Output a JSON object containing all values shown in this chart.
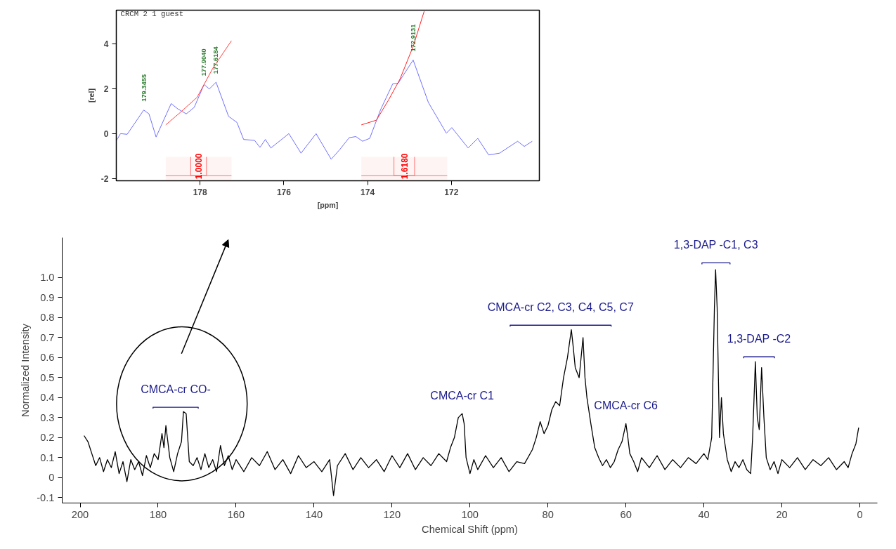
{
  "chart_data": [
    {
      "type": "line",
      "ylabel": "[rel]",
      "xlabel": "[ppm]",
      "xlim": [
        180.0,
        169.9
      ],
      "ylim": [
        -2.1,
        5.5
      ],
      "xticks": [
        178,
        176,
        174,
        172
      ],
      "yticks": [
        -2,
        0,
        2,
        4
      ],
      "grid": false,
      "annotations": [
        "CRCM  2  1  guest",
        {
          "text": "179.3455",
          "x": 179.3455,
          "y": 1.05
        },
        {
          "text": "177.9040",
          "x": 177.904,
          "y": 2.19
        },
        {
          "text": "177.6184",
          "x": 177.6184,
          "y": 2.29
        },
        {
          "text": "172.9131",
          "x": 172.9131,
          "y": 3.28
        }
      ],
      "bands": [
        {
          "axis": "x",
          "from": 178.82,
          "to": 177.25,
          "label": "1.0000",
          "color": "#ff7070"
        },
        {
          "axis": "x",
          "from": 174.15,
          "to": 172.1,
          "label": "1.6180",
          "color": "#ff7070"
        }
      ],
      "series": [
        {
          "color": "#6f6fff",
          "x": [
            180.0,
            179.9,
            179.74,
            179.3455,
            179.22,
            179.05,
            178.69,
            178.53,
            178.33,
            178.14,
            177.904,
            177.78,
            177.6184,
            177.32,
            177.12,
            176.96,
            176.7,
            176.57,
            176.44,
            176.31,
            175.88,
            175.59,
            175.23,
            174.87,
            174.67,
            174.44,
            174.28,
            174.12,
            173.95,
            173.69,
            173.4,
            173.27,
            172.9131,
            172.55,
            172.12,
            171.99,
            171.6,
            171.37,
            171.11,
            170.85,
            170.42,
            170.26,
            170.07
          ],
          "values": [
            -0.32,
            0.0,
            -0.03,
            1.05,
            0.88,
            -0.15,
            1.34,
            1.1,
            0.88,
            1.17,
            2.19,
            1.99,
            2.29,
            0.77,
            0.5,
            -0.26,
            -0.3,
            -0.61,
            -0.26,
            -0.64,
            0.0,
            -0.87,
            0.0,
            -1.14,
            -0.72,
            -0.18,
            -0.13,
            -0.34,
            -0.21,
            1.07,
            2.22,
            2.25,
            3.28,
            1.39,
            0.02,
            0.27,
            -0.64,
            -0.21,
            -0.95,
            -0.87,
            -0.34,
            -0.57,
            -0.34
          ]
        },
        {
          "color": "#ff4040",
          "x": [
            178.82,
            178.5,
            178.07,
            177.7,
            177.25
          ],
          "values": [
            0.39,
            0.9,
            1.62,
            2.9,
            4.14
          ]
        },
        {
          "color": "#ff2020",
          "x": [
            174.15,
            173.79,
            173.5,
            173.23,
            172.91,
            172.65
          ],
          "values": [
            0.39,
            0.6,
            1.5,
            2.42,
            3.9,
            5.45
          ]
        }
      ]
    },
    {
      "type": "line",
      "xlabel": "Chemical Shift (ppm)",
      "ylabel": "Normalized Intensity",
      "xlim": [
        204.6,
        -4.5
      ],
      "ylim": [
        -0.127,
        1.2
      ],
      "xticks": [
        200,
        180,
        160,
        140,
        120,
        100,
        80,
        60,
        40,
        20,
        0
      ],
      "yticks": [
        -0.1,
        0,
        0.1,
        0.2,
        0.3,
        0.4,
        0.5,
        0.6,
        0.7,
        0.8,
        0.9,
        {
          "value": 1.0,
          "label": "1.0"
        }
      ],
      "grid": false,
      "annotations": [
        {
          "text": "CMCA-cr CO-",
          "x": 175.5,
          "y": 0.352
        },
        {
          "text": "CMCA-cr C1",
          "x": 102,
          "y": 0.32
        },
        {
          "text": "CMCA-cr C2, C3, C4, C5, C7",
          "x": 76.75,
          "y": 0.762
        },
        {
          "text": "CMCA-cr C6",
          "x": 60,
          "y": 0.27
        },
        {
          "text": "1,3-DAP -C1, C3",
          "x": 36.9,
          "y": 1.074
        },
        {
          "text": "1,3-DAP -C2",
          "x": 25.85,
          "y": 0.604
        }
      ],
      "series": [
        {
          "color": "#000000",
          "x": [
            199,
            198,
            197,
            196,
            195,
            194,
            193,
            192,
            191,
            190,
            189,
            188,
            187,
            186,
            185,
            184,
            183,
            182,
            181,
            180,
            179,
            178.5,
            178,
            177,
            176,
            175,
            174,
            173.5,
            172.8,
            172,
            171,
            170,
            169,
            168,
            167,
            166,
            165,
            164,
            163,
            162,
            161,
            160,
            158,
            156,
            154,
            152,
            150,
            148,
            146,
            144,
            142,
            140,
            138,
            136,
            135,
            134,
            132,
            130,
            128,
            126,
            124,
            122,
            120,
            118,
            116,
            114,
            112,
            110,
            108,
            106,
            105,
            104,
            103,
            102,
            101.5,
            101,
            100,
            99,
            98,
            96,
            94,
            92,
            90,
            88,
            86,
            84,
            83,
            82,
            81,
            80,
            79,
            78,
            77,
            76,
            75,
            74,
            73.5,
            73,
            72,
            71,
            70.5,
            70,
            69,
            68,
            67,
            66,
            65,
            64,
            63,
            62,
            61,
            60,
            59.5,
            59,
            58,
            57,
            56,
            54,
            52,
            50,
            48,
            46,
            44,
            42,
            40,
            39,
            38,
            37.3,
            37,
            36.6,
            36,
            35.5,
            35,
            34,
            33,
            32,
            31,
            30,
            29,
            28,
            27.5,
            26.8,
            26.3,
            25.8,
            25.2,
            24.6,
            24,
            23,
            22,
            21,
            20,
            18,
            16,
            14,
            12,
            10,
            8,
            6,
            4,
            3,
            2,
            1,
            0.3
          ],
          "values": [
            0.21,
            0.18,
            0.12,
            0.06,
            0.1,
            0.03,
            0.09,
            0.05,
            0.13,
            0.02,
            0.08,
            -0.02,
            0.09,
            0.04,
            0.08,
            0.01,
            0.11,
            0.05,
            0.12,
            0.09,
            0.22,
            0.15,
            0.26,
            0.1,
            0.03,
            0.12,
            0.18,
            0.33,
            0.32,
            0.08,
            0.06,
            0.1,
            0.04,
            0.12,
            0.05,
            0.09,
            0.03,
            0.16,
            0.06,
            0.11,
            0.04,
            0.09,
            0.03,
            0.1,
            0.06,
            0.13,
            0.04,
            0.09,
            0.02,
            0.11,
            0.05,
            0.08,
            0.03,
            0.09,
            -0.09,
            0.06,
            0.12,
            0.04,
            0.1,
            0.05,
            0.09,
            0.03,
            0.11,
            0.05,
            0.12,
            0.04,
            0.1,
            0.06,
            0.12,
            0.08,
            0.15,
            0.2,
            0.3,
            0.32,
            0.27,
            0.1,
            0.02,
            0.09,
            0.04,
            0.11,
            0.05,
            0.1,
            0.03,
            0.08,
            0.07,
            0.14,
            0.2,
            0.28,
            0.22,
            0.26,
            0.34,
            0.38,
            0.36,
            0.5,
            0.6,
            0.74,
            0.65,
            0.55,
            0.5,
            0.7,
            0.5,
            0.4,
            0.27,
            0.15,
            0.1,
            0.06,
            0.09,
            0.05,
            0.08,
            0.14,
            0.18,
            0.27,
            0.2,
            0.12,
            0.08,
            0.03,
            0.1,
            0.05,
            0.11,
            0.04,
            0.09,
            0.05,
            0.1,
            0.07,
            0.12,
            0.09,
            0.2,
            0.85,
            1.04,
            0.85,
            0.2,
            0.4,
            0.22,
            0.09,
            0.03,
            0.08,
            0.05,
            0.09,
            0.04,
            0.02,
            0.2,
            0.58,
            0.3,
            0.24,
            0.55,
            0.3,
            0.1,
            0.04,
            0.08,
            0.02,
            0.09,
            0.05,
            0.1,
            0.04,
            0.09,
            0.06,
            0.1,
            0.04,
            0.08,
            0.05,
            0.12,
            0.17,
            0.25
          ]
        },
        {
          "color": "#1a1a8c",
          "x": [
            181.3,
            181.3,
            169.7,
            169.7,
            null,
            89.7,
            89.7,
            63.8,
            63.8,
            null,
            40.5,
            40.5,
            33.3,
            33.3,
            null,
            29.8,
            29.8,
            21.9,
            21.9
          ],
          "values": [
            0.345,
            0.352,
            0.352,
            0.345,
            null,
            0.755,
            0.762,
            0.762,
            0.755,
            null,
            1.067,
            1.074,
            1.074,
            1.067,
            null,
            0.597,
            0.604,
            0.604,
            0.597
          ]
        }
      ]
    }
  ]
}
